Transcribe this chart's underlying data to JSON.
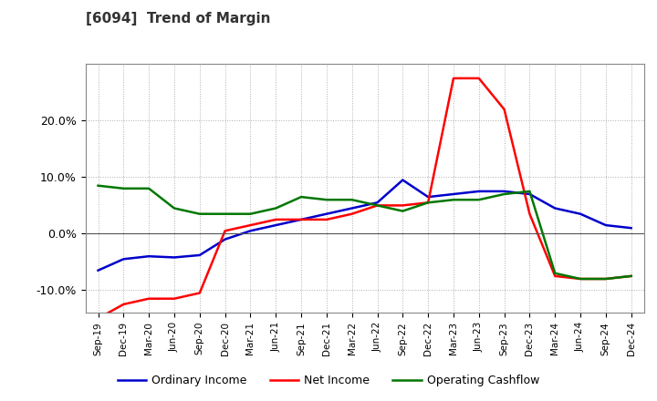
{
  "title": "[6094]  Trend of Margin",
  "x_labels": [
    "Sep-19",
    "Dec-19",
    "Mar-20",
    "Jun-20",
    "Sep-20",
    "Dec-20",
    "Mar-21",
    "Jun-21",
    "Sep-21",
    "Dec-21",
    "Mar-22",
    "Jun-22",
    "Sep-22",
    "Dec-22",
    "Mar-23",
    "Jun-23",
    "Sep-23",
    "Dec-23",
    "Mar-24",
    "Jun-24",
    "Sep-24",
    "Dec-24"
  ],
  "ordinary_income": [
    -6.5,
    -4.5,
    -4.0,
    -4.2,
    -3.8,
    -1.0,
    0.5,
    1.5,
    2.5,
    3.5,
    4.5,
    5.5,
    9.5,
    6.5,
    7.0,
    7.5,
    7.5,
    7.0,
    4.5,
    3.5,
    1.5,
    1.0
  ],
  "net_income": [
    -15.0,
    -12.5,
    -11.5,
    -11.5,
    -10.5,
    0.5,
    1.5,
    2.5,
    2.5,
    2.5,
    3.5,
    5.0,
    5.0,
    5.5,
    27.5,
    27.5,
    22.0,
    3.5,
    -7.5,
    -8.0,
    -8.0,
    -7.5
  ],
  "operating_cashflow": [
    8.5,
    8.0,
    8.0,
    4.5,
    3.5,
    3.5,
    3.5,
    4.5,
    6.5,
    6.0,
    6.0,
    5.0,
    4.0,
    5.5,
    6.0,
    6.0,
    7.0,
    7.5,
    -7.0,
    -8.0,
    -8.0,
    -7.5
  ],
  "ylim": [
    -14,
    30
  ],
  "yticks": [
    -10,
    0,
    10,
    20
  ],
  "ytick_labels": [
    "-10.0%",
    "0.0%",
    "10.0%",
    "20.0%"
  ],
  "colors": {
    "ordinary_income": "#0000cc",
    "net_income": "#ff0000",
    "operating_cashflow": "#007700"
  },
  "background_color": "#ffffff",
  "grid_color": "#999999",
  "title_color": "#333333",
  "title_fontsize": 11,
  "legend": {
    "ordinary_income": "Ordinary Income",
    "net_income": "Net Income",
    "operating_cashflow": "Operating Cashflow"
  }
}
